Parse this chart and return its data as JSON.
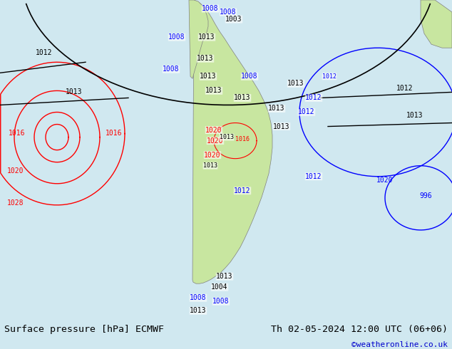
{
  "title_left": "Surface pressure [hPa] ECMWF",
  "title_right": "Th 02-05-2024 12:00 UTC (06+06)",
  "credit": "©weatheronline.co.uk",
  "bg_color": "#d0e8f0",
  "land_color": "#c8e6a0",
  "fig_width": 6.34,
  "fig_height": 4.9,
  "dpi": 100,
  "bottom_bar_color": "#f0f0f0",
  "title_fontsize": 9.5,
  "credit_color": "#0000cc"
}
